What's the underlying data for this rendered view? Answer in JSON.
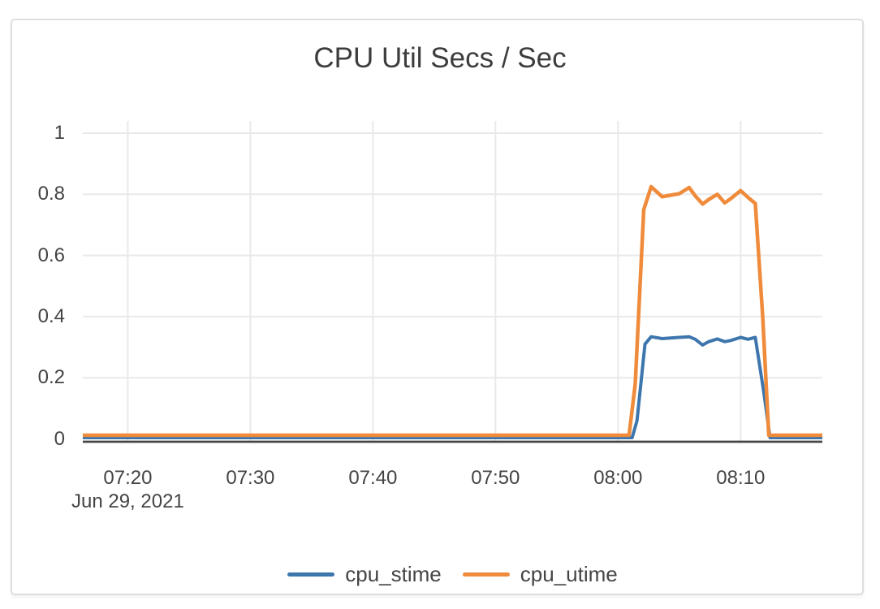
{
  "card": {
    "title": "CPU Util Secs / Sec"
  },
  "chart_data": {
    "type": "line",
    "title": "CPU Util Secs / Sec",
    "grid": true,
    "legend_position": "bottom",
    "grid_color": "#e9e9e9",
    "axis_line_color": "#444444",
    "x_axis": {
      "date_label": "Jun 29, 2021",
      "range_minutes_after_0700": [
        16.33,
        76.67
      ],
      "ticks": [
        {
          "label": "07:20",
          "t": 20
        },
        {
          "label": "07:30",
          "t": 30
        },
        {
          "label": "07:40",
          "t": 40
        },
        {
          "label": "07:50",
          "t": 50
        },
        {
          "label": "08:00",
          "t": 60
        },
        {
          "label": "08:10",
          "t": 70
        }
      ]
    },
    "y_axis": {
      "range": [
        -0.012,
        1.04
      ],
      "ticks": [
        {
          "label": "0",
          "v": 0.0
        },
        {
          "label": "0.2",
          "v": 0.2
        },
        {
          "label": "0.4",
          "v": 0.4
        },
        {
          "label": "0.6",
          "v": 0.6
        },
        {
          "label": "0.8",
          "v": 0.8
        },
        {
          "label": "1",
          "v": 1.0
        }
      ]
    },
    "series": [
      {
        "name": "cpu_stime",
        "color": "#3d76ad",
        "width": 4,
        "points": [
          [
            16.33,
            0.004
          ],
          [
            61.15,
            0.004
          ],
          [
            61.55,
            0.06
          ],
          [
            62.2,
            0.31
          ],
          [
            62.7,
            0.334
          ],
          [
            63.6,
            0.328
          ],
          [
            64.3,
            0.33
          ],
          [
            65.0,
            0.332
          ],
          [
            65.8,
            0.334
          ],
          [
            66.3,
            0.326
          ],
          [
            66.9,
            0.307
          ],
          [
            67.4,
            0.318
          ],
          [
            68.1,
            0.327
          ],
          [
            68.7,
            0.318
          ],
          [
            69.2,
            0.322
          ],
          [
            70.0,
            0.332
          ],
          [
            70.6,
            0.326
          ],
          [
            71.2,
            0.332
          ],
          [
            71.9,
            0.15
          ],
          [
            72.4,
            0.004
          ],
          [
            76.67,
            0.004
          ]
        ]
      },
      {
        "name": "cpu_utime",
        "color": "#ef8b3b",
        "width": 4.5,
        "points": [
          [
            16.33,
            0.012
          ],
          [
            60.9,
            0.012
          ],
          [
            61.4,
            0.18
          ],
          [
            62.1,
            0.75
          ],
          [
            62.7,
            0.825
          ],
          [
            63.6,
            0.792
          ],
          [
            64.3,
            0.797
          ],
          [
            65.0,
            0.802
          ],
          [
            65.8,
            0.822
          ],
          [
            66.3,
            0.795
          ],
          [
            66.9,
            0.768
          ],
          [
            67.4,
            0.783
          ],
          [
            68.1,
            0.8
          ],
          [
            68.7,
            0.772
          ],
          [
            69.2,
            0.786
          ],
          [
            70.0,
            0.812
          ],
          [
            70.6,
            0.79
          ],
          [
            71.2,
            0.77
          ],
          [
            71.8,
            0.4
          ],
          [
            72.3,
            0.012
          ],
          [
            76.67,
            0.012
          ]
        ]
      }
    ]
  }
}
